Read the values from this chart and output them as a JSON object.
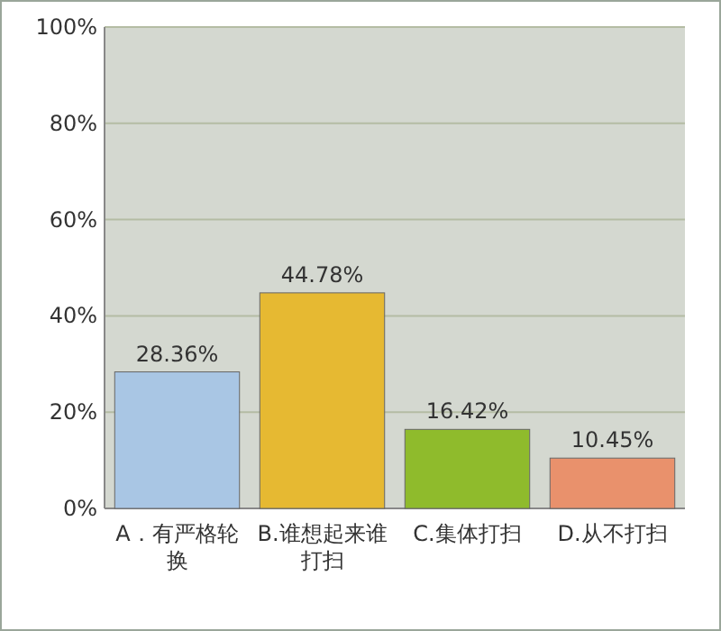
{
  "chart_data": {
    "type": "bar",
    "categories": [
      "A．有严格轮换",
      "B.谁想起来谁打扫",
      "C.集体打扫",
      "D.从不打扫"
    ],
    "values": [
      28.36,
      44.78,
      16.42,
      10.45
    ],
    "colors": [
      "#a9c6e4",
      "#e6b932",
      "#8fbb2c",
      "#e9916c"
    ],
    "value_labels": [
      "28.36%",
      "44.78%",
      "16.42%",
      "10.45%"
    ],
    "ylim": [
      0,
      100
    ],
    "yticks": [
      {
        "value": 0,
        "label": "0%"
      },
      {
        "value": 20,
        "label": "20%"
      },
      {
        "value": 40,
        "label": "40%"
      },
      {
        "value": 60,
        "label": "60%"
      },
      {
        "value": 80,
        "label": "80%"
      },
      {
        "value": 100,
        "label": "100%"
      }
    ],
    "grid": "y"
  }
}
